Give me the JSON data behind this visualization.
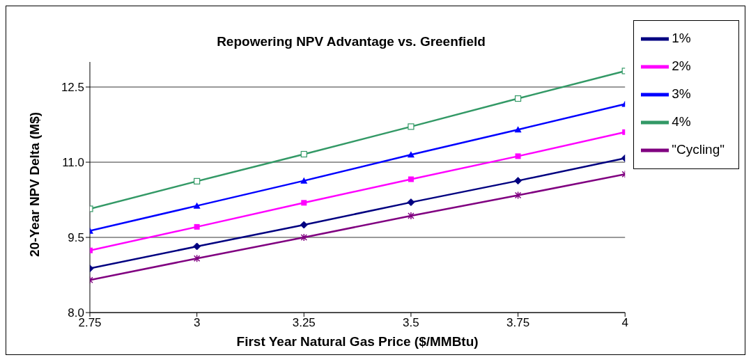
{
  "chart_data": {
    "type": "line",
    "title": "Repowering NPV Advantage vs. Greenfield",
    "xlabel": "First Year Natural Gas Price ($/MMBtu)",
    "ylabel": "20-Year NPV Delta (M$)",
    "x": [
      2.75,
      3,
      3.25,
      3.5,
      3.75,
      4
    ],
    "series": [
      {
        "name": "1%",
        "color": "#000080",
        "marker": "diamond",
        "values": [
          8.88,
          9.32,
          9.75,
          10.2,
          10.63,
          11.08
        ]
      },
      {
        "name": "2%",
        "color": "#ff00ff",
        "marker": "square",
        "values": [
          9.24,
          9.71,
          10.19,
          10.66,
          11.12,
          11.6
        ]
      },
      {
        "name": "3%",
        "color": "#0000ff",
        "marker": "triangle",
        "values": [
          9.63,
          10.13,
          10.63,
          11.15,
          11.65,
          12.16
        ]
      },
      {
        "name": "4%",
        "color": "#339966",
        "marker": "square-open",
        "values": [
          10.07,
          10.62,
          11.16,
          11.71,
          12.27,
          12.82
        ]
      },
      {
        "name": "\"Cycling\"",
        "color": "#800080",
        "marker": "cross",
        "values": [
          8.65,
          9.08,
          9.5,
          9.93,
          10.34,
          10.76
        ]
      }
    ],
    "xlim": [
      2.75,
      4
    ],
    "xticks": [
      2.75,
      3,
      3.25,
      3.5,
      3.75,
      4
    ],
    "ylim": [
      8,
      13
    ],
    "yticks": [
      {
        "value": 8,
        "label": "8.0"
      },
      9.5,
      {
        "value": 11,
        "label": "11.0"
      },
      12.5
    ],
    "grid": "y",
    "legend": "right",
    "line_style": "solid"
  }
}
